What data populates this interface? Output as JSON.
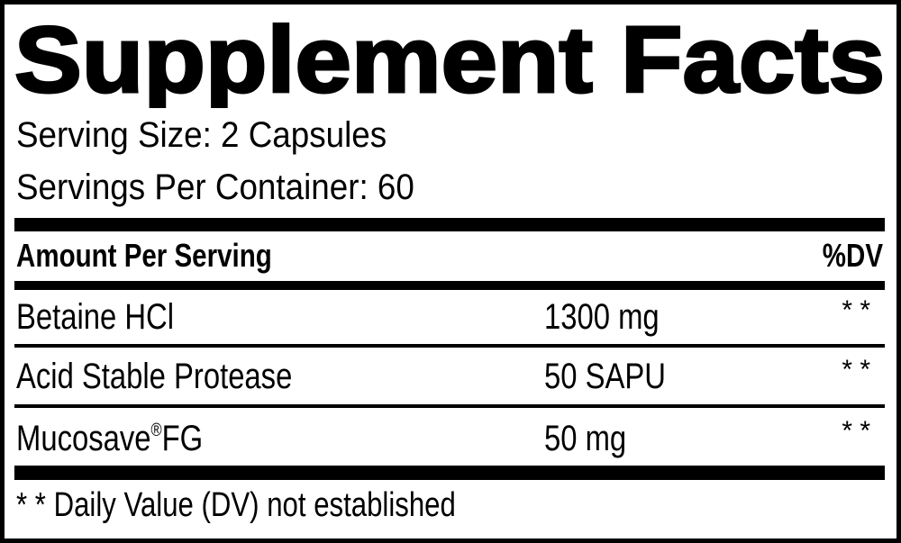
{
  "title": "Supplement Facts",
  "serving_size": "Serving Size: 2 Capsules",
  "servings_per_container": "Servings Per Container: 60",
  "table": {
    "header_amount": "Amount Per Serving",
    "header_dv": "%DV",
    "rows": [
      {
        "name": "Betaine HCl",
        "amount": "1300 mg",
        "dv": "* *"
      },
      {
        "name": "Acid Stable Protease",
        "amount": "50 SAPU",
        "dv": "* *"
      },
      {
        "name": "Mucosave",
        "name_mark": "®",
        "name_suffix": "FG",
        "amount": "50 mg",
        "dv": "* *"
      }
    ]
  },
  "footnote": "* * Daily Value (DV) not established"
}
